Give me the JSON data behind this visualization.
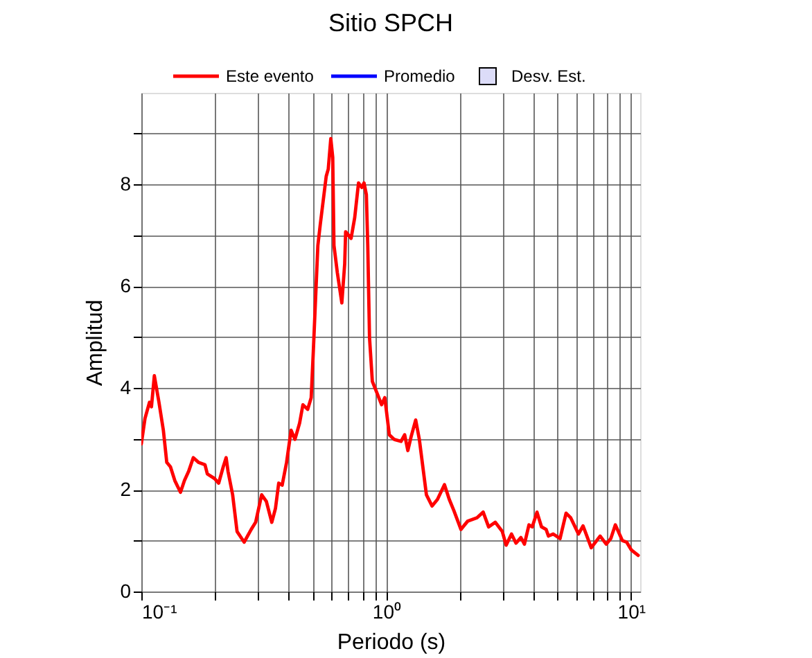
{
  "chart_data": {
    "type": "line",
    "title": "Sitio SPCH",
    "xlabel": "Periodo (s)",
    "ylabel": "Amplitud",
    "log": "x",
    "grid": true,
    "legend": "top",
    "line_style": "solid",
    "marker": "none",
    "xlim": [
      0.1,
      10.9
    ],
    "ylim": [
      0,
      9.8
    ],
    "xticks": [
      {
        "value": 0.1,
        "label": "10⁻¹"
      },
      {
        "value": 0.2,
        "label": null
      },
      {
        "value": 0.3,
        "label": null
      },
      {
        "value": 0.4,
        "label": null
      },
      {
        "value": 0.5,
        "label": null
      },
      {
        "value": 0.6,
        "label": null
      },
      {
        "value": 0.7,
        "label": null
      },
      {
        "value": 0.8,
        "label": null
      },
      {
        "value": 0.9,
        "label": null
      },
      {
        "value": 1,
        "label": "10⁰"
      },
      {
        "value": 2,
        "label": null
      },
      {
        "value": 3,
        "label": null
      },
      {
        "value": 4,
        "label": null
      },
      {
        "value": 5,
        "label": null
      },
      {
        "value": 6,
        "label": null
      },
      {
        "value": 7,
        "label": null
      },
      {
        "value": 8,
        "label": null
      },
      {
        "value": 9,
        "label": null
      },
      {
        "value": 10,
        "label": "10¹"
      }
    ],
    "yticks": [
      0,
      {
        "value": 1,
        "label": null
      },
      2,
      {
        "value": 3,
        "label": null
      },
      4,
      {
        "value": 5,
        "label": null
      },
      6,
      {
        "value": 7,
        "label": null
      },
      8,
      {
        "value": 9,
        "label": null
      }
    ],
    "series": [
      {
        "name": "Este evento",
        "color": "#ff0000",
        "x": [
          0.1,
          0.1035,
          0.108,
          0.11,
          0.113,
          0.118,
          0.123,
          0.127,
          0.1315,
          0.137,
          0.1445,
          0.15,
          0.156,
          0.163,
          0.171,
          0.182,
          0.186,
          0.199,
          0.207,
          0.216,
          0.222,
          0.226,
          0.236,
          0.246,
          0.263,
          0.281,
          0.293,
          0.31,
          0.324,
          0.341,
          0.353,
          0.364,
          0.376,
          0.392,
          0.409,
          0.424,
          0.443,
          0.457,
          0.478,
          0.494,
          0.504,
          0.526,
          0.538,
          0.569,
          0.58,
          0.594,
          0.605,
          0.612,
          0.632,
          0.659,
          0.677,
          0.683,
          0.719,
          0.744,
          0.771,
          0.795,
          0.812,
          0.83,
          0.841,
          0.855,
          0.878,
          0.917,
          0.958,
          0.987,
          1.03,
          1.077,
          1.15,
          1.19,
          1.226,
          1.264,
          1.32,
          1.366,
          1.46,
          1.54,
          1.62,
          1.73,
          1.81,
          1.89,
          2.02,
          2.15,
          2.35,
          2.49,
          2.62,
          2.79,
          2.98,
          3.09,
          3.25,
          3.39,
          3.55,
          3.67,
          3.83,
          3.95,
          4.13,
          4.31,
          4.5,
          4.6,
          4.81,
          5.13,
          5.43,
          5.67,
          6.1,
          6.37,
          6.88,
          7.48,
          7.92,
          8.27,
          8.63,
          9.22,
          9.6,
          10.02,
          10.7
        ],
        "values": [
          2.9,
          3.4,
          3.72,
          3.63,
          4.24,
          3.72,
          3.17,
          2.54,
          2.45,
          2.18,
          1.95,
          2.18,
          2.36,
          2.63,
          2.54,
          2.49,
          2.31,
          2.22,
          2.13,
          2.45,
          2.63,
          2.36,
          1.9,
          1.18,
          0.97,
          1.22,
          1.36,
          1.9,
          1.77,
          1.36,
          1.63,
          2.13,
          2.09,
          2.54,
          3.17,
          2.99,
          3.31,
          3.67,
          3.58,
          3.81,
          4.72,
          6.8,
          7.21,
          8.16,
          8.3,
          8.9,
          8.53,
          6.8,
          6.26,
          5.67,
          6.44,
          7.07,
          6.94,
          7.35,
          8.03,
          7.94,
          8.03,
          7.8,
          6.8,
          4.99,
          4.13,
          3.9,
          3.67,
          3.81,
          3.08,
          2.99,
          2.95,
          3.08,
          2.77,
          3.04,
          3.37,
          2.99,
          1.9,
          1.68,
          1.81,
          2.1,
          1.81,
          1.59,
          1.22,
          1.38,
          1.45,
          1.56,
          1.27,
          1.36,
          1.18,
          0.91,
          1.13,
          0.95,
          1.06,
          0.93,
          1.31,
          1.27,
          1.56,
          1.27,
          1.22,
          1.09,
          1.13,
          1.04,
          1.54,
          1.45,
          1.13,
          1.29,
          0.86,
          1.09,
          0.93,
          1.04,
          1.31,
          1.0,
          0.97,
          0.82,
          0.71
        ]
      },
      {
        "name": "Promedio",
        "color": "#0000ff"
      },
      {
        "name": "Desv. Est.",
        "type": "area",
        "color": "#dcdcf8"
      }
    ]
  }
}
